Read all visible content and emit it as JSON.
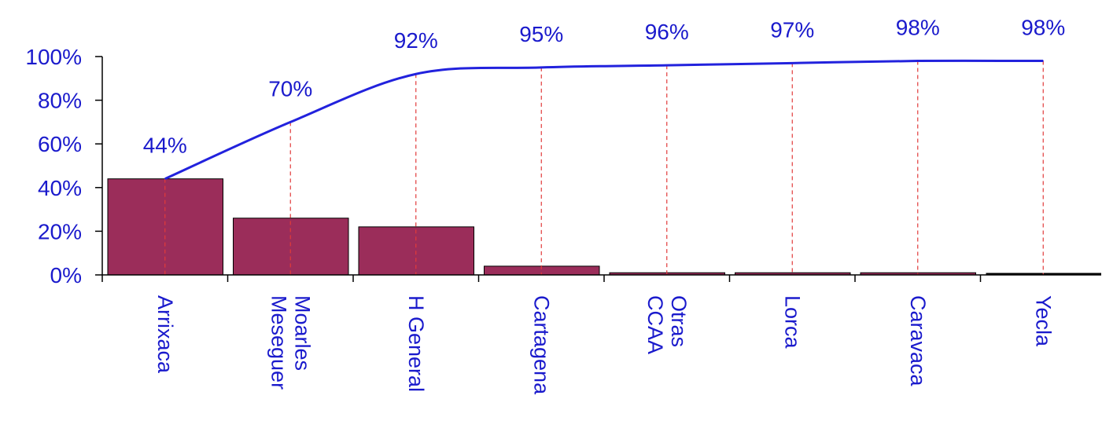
{
  "chart_data": {
    "type": "bar",
    "categories": [
      [
        "Arrixaca"
      ],
      [
        "Moarles",
        "Meseguer"
      ],
      [
        "H General"
      ],
      [
        "Cartagena"
      ],
      [
        "Otras",
        "CCAA"
      ],
      [
        "Lorca"
      ],
      [
        "Caravaca"
      ],
      [
        "Yecla"
      ]
    ],
    "series": [
      {
        "type": "bar",
        "values": [
          44,
          26,
          22,
          4,
          1,
          1,
          1,
          0
        ],
        "color": "#9b2d5a"
      },
      {
        "type": "line",
        "values": [
          44,
          70,
          92,
          95,
          96,
          97,
          98,
          98
        ],
        "color": "#2222dd"
      }
    ],
    "cumulative_labels": [
      "44%",
      "70%",
      "92%",
      "95%",
      "96%",
      "97%",
      "98%",
      "98%"
    ],
    "y_ticks": [
      "0%",
      "20%",
      "40%",
      "60%",
      "80%",
      "100%"
    ],
    "ylim": [
      0,
      100
    ],
    "grid": false,
    "drop_lines": "dashed red from line to axis"
  }
}
